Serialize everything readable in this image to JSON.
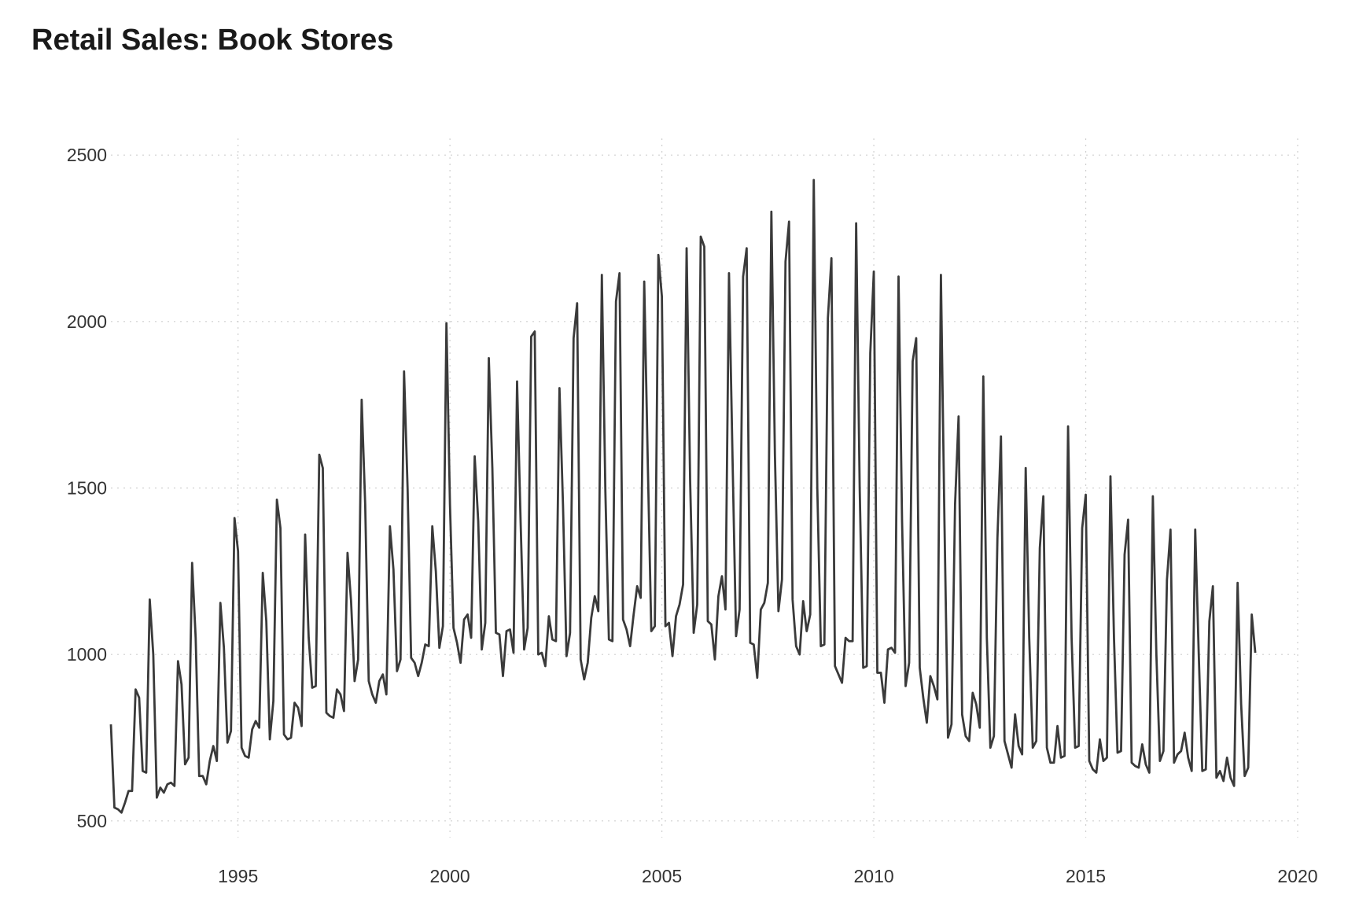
{
  "chart_data": {
    "type": "line",
    "title": "Retail Sales: Book Stores",
    "xlabel": "",
    "ylabel": "",
    "xlim": [
      1992.0,
      2020.0
    ],
    "ylim": [
      450,
      2550
    ],
    "x_ticks": [
      1995,
      2000,
      2005,
      2010,
      2015,
      2020
    ],
    "y_ticks": [
      500,
      1000,
      1500,
      2000,
      2500
    ],
    "grid": true,
    "line_color": "#3a3a3a",
    "series": [
      {
        "x_start": "1992-01",
        "frequency": "monthly",
        "values": [
          790,
          540,
          535,
          525,
          555,
          590,
          590,
          895,
          870,
          650,
          645,
          1165,
          1000,
          570,
          600,
          585,
          610,
          615,
          605,
          980,
          910,
          670,
          690,
          1275,
          1050,
          635,
          635,
          610,
          680,
          725,
          680,
          1155,
          1020,
          735,
          770,
          1410,
          1310,
          720,
          695,
          690,
          775,
          800,
          780,
          1245,
          1100,
          745,
          860,
          1465,
          1380,
          760,
          745,
          750,
          855,
          840,
          785,
          1360,
          1050,
          900,
          905,
          1600,
          1560,
          825,
          815,
          810,
          895,
          880,
          830,
          1305,
          1160,
          920,
          985,
          1765,
          1450,
          920,
          880,
          855,
          920,
          940,
          880,
          1385,
          1255,
          950,
          985,
          1850,
          1500,
          990,
          975,
          935,
          975,
          1030,
          1025,
          1385,
          1250,
          1020,
          1085,
          1995,
          1450,
          1080,
          1035,
          975,
          1105,
          1120,
          1050,
          1595,
          1400,
          1015,
          1095,
          1890,
          1560,
          1065,
          1060,
          935,
          1070,
          1075,
          1005,
          1820,
          1400,
          1015,
          1080,
          1955,
          1970,
          1000,
          1005,
          965,
          1115,
          1045,
          1040,
          1800,
          1450,
          995,
          1065,
          1950,
          2055,
          985,
          925,
          975,
          1110,
          1175,
          1130,
          2140,
          1490,
          1045,
          1040,
          2060,
          2145,
          1105,
          1075,
          1025,
          1120,
          1205,
          1170,
          2120,
          1580,
          1070,
          1085,
          2200,
          2075,
          1085,
          1095,
          995,
          1115,
          1150,
          1210,
          2220,
          1520,
          1065,
          1150,
          2255,
          2225,
          1100,
          1090,
          985,
          1175,
          1235,
          1135,
          2145,
          1590,
          1055,
          1135,
          2135,
          2220,
          1035,
          1030,
          930,
          1135,
          1155,
          1215,
          2330,
          1600,
          1130,
          1225,
          2180,
          2300,
          1165,
          1025,
          1000,
          1160,
          1070,
          1120,
          2425,
          1500,
          1025,
          1030,
          2010,
          2190,
          965,
          940,
          915,
          1050,
          1040,
          1040,
          2295,
          1500,
          960,
          965,
          1905,
          2150,
          945,
          945,
          855,
          1015,
          1020,
          1005,
          2135,
          1400,
          905,
          975,
          1880,
          1950,
          960,
          870,
          795,
          935,
          905,
          865,
          2140,
          1400,
          750,
          790,
          1450,
          1715,
          820,
          755,
          740,
          885,
          850,
          780,
          1835,
          1050,
          720,
          755,
          1350,
          1655,
          740,
          700,
          660,
          820,
          725,
          700,
          1560,
          1050,
          720,
          740,
          1320,
          1475,
          720,
          675,
          675,
          785,
          690,
          695,
          1685,
          1050,
          720,
          725,
          1380,
          1480,
          680,
          655,
          645,
          745,
          680,
          690,
          1535,
          1050,
          705,
          710,
          1300,
          1405,
          675,
          665,
          660,
          730,
          670,
          645,
          1475,
          1000,
          680,
          710,
          1225,
          1375,
          675,
          700,
          710,
          765,
          690,
          650,
          1375,
          1000,
          650,
          655,
          1100,
          1205,
          630,
          650,
          620,
          690,
          630,
          605,
          1215,
          850,
          635,
          660,
          1120,
          1005
        ]
      }
    ]
  }
}
